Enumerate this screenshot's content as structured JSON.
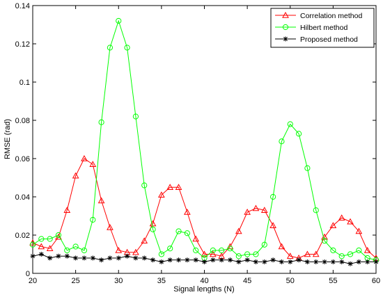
{
  "chart_data": {
    "type": "line",
    "xlabel": "Signal lengths (N)",
    "ylabel": "RMSE (rad)",
    "xlim": [
      20,
      60
    ],
    "ylim": [
      0,
      0.14
    ],
    "xticks": [
      20,
      25,
      30,
      35,
      40,
      45,
      50,
      55,
      60
    ],
    "yticks": [
      0,
      0.02,
      0.04,
      0.06,
      0.08,
      0.1,
      0.12,
      0.14
    ],
    "grid": false,
    "legend_position": "top-right",
    "x": [
      20,
      21,
      22,
      23,
      24,
      25,
      26,
      27,
      28,
      29,
      30,
      31,
      32,
      33,
      34,
      35,
      36,
      37,
      38,
      39,
      40,
      41,
      42,
      43,
      44,
      45,
      46,
      47,
      48,
      49,
      50,
      51,
      52,
      53,
      54,
      55,
      56,
      57,
      58,
      59,
      60
    ],
    "series": [
      {
        "name": "Correlation method",
        "color": "#ff0000",
        "marker": "triangle",
        "values": [
          0.016,
          0.014,
          0.013,
          0.019,
          0.033,
          0.051,
          0.06,
          0.057,
          0.038,
          0.024,
          0.012,
          0.011,
          0.011,
          0.017,
          0.026,
          0.041,
          0.045,
          0.045,
          0.032,
          0.018,
          0.01,
          0.01,
          0.009,
          0.014,
          0.022,
          0.032,
          0.034,
          0.033,
          0.025,
          0.014,
          0.009,
          0.008,
          0.01,
          0.01,
          0.019,
          0.025,
          0.029,
          0.027,
          0.022,
          0.012,
          0.008
        ]
      },
      {
        "name": "Hilbert method",
        "color": "#00ff00",
        "marker": "circle",
        "values": [
          0.015,
          0.018,
          0.018,
          0.02,
          0.012,
          0.014,
          0.012,
          0.028,
          0.079,
          0.118,
          0.132,
          0.118,
          0.082,
          0.046,
          0.023,
          0.01,
          0.013,
          0.022,
          0.021,
          0.012,
          0.008,
          0.012,
          0.012,
          0.013,
          0.009,
          0.01,
          0.01,
          0.015,
          0.04,
          0.069,
          0.078,
          0.073,
          0.055,
          0.033,
          0.017,
          0.012,
          0.009,
          0.01,
          0.012,
          0.008,
          0.007
        ]
      },
      {
        "name": "Proposed method",
        "color": "#000000",
        "marker": "star",
        "values": [
          0.009,
          0.01,
          0.008,
          0.009,
          0.009,
          0.008,
          0.008,
          0.008,
          0.007,
          0.008,
          0.008,
          0.009,
          0.008,
          0.008,
          0.007,
          0.006,
          0.007,
          0.007,
          0.007,
          0.007,
          0.006,
          0.007,
          0.007,
          0.007,
          0.006,
          0.007,
          0.006,
          0.006,
          0.007,
          0.006,
          0.006,
          0.007,
          0.006,
          0.006,
          0.006,
          0.006,
          0.006,
          0.005,
          0.006,
          0.006,
          0.006
        ]
      }
    ]
  }
}
